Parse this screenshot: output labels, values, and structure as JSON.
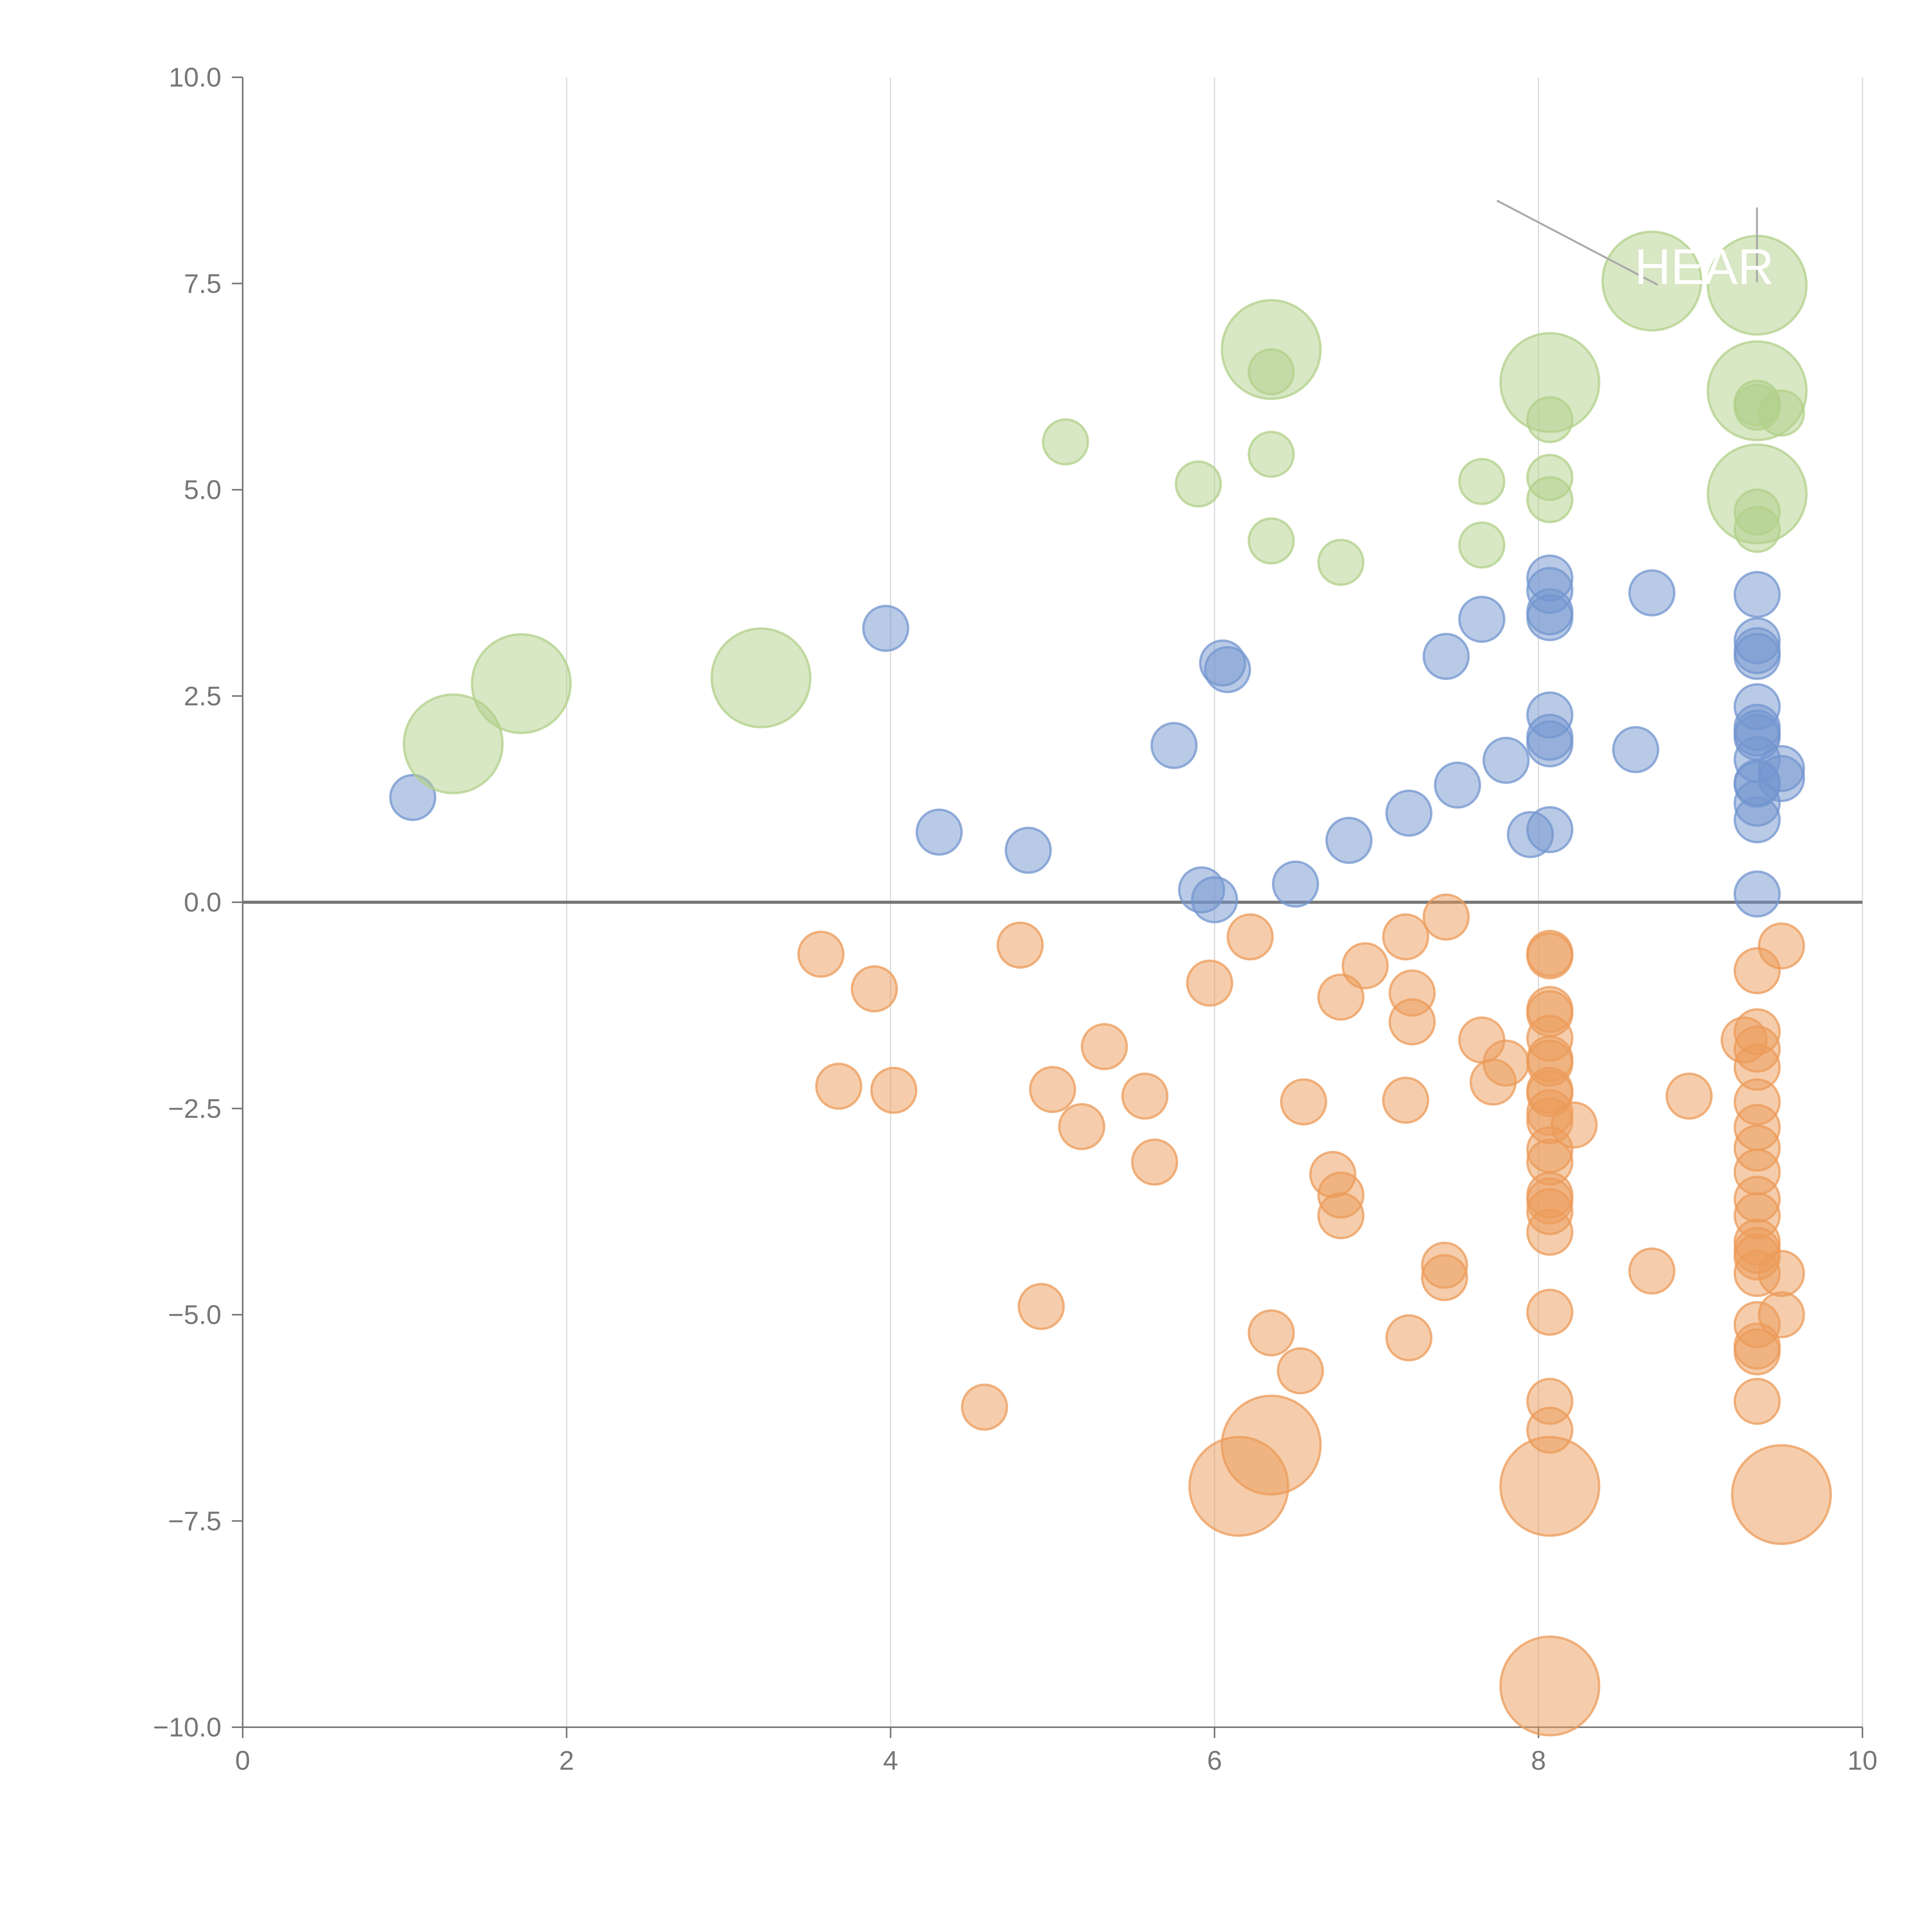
{
  "colors": {
    "blue": "#7396cf",
    "orange": "#ec9b5a",
    "green": "#b2d08a",
    "axis": "#777777",
    "grid": "#d9d9d9"
  },
  "chart_data": {
    "type": "scatter",
    "title": "",
    "xlabel": "",
    "ylabel": "",
    "xlim": [
      0,
      10
    ],
    "ylim": [
      -10,
      10
    ],
    "x_ticks": [
      0,
      2,
      4,
      6,
      8,
      10
    ],
    "y_ticks": [
      -10,
      -7.5,
      -5,
      -2.5,
      0,
      2.5,
      5,
      7.5,
      10
    ],
    "x_tick_labels": [
      "0",
      "2",
      "4",
      "6",
      "8",
      "10"
    ],
    "y_tick_labels": [
      "−10.0",
      "−7.5",
      "−5.0",
      "−2.5",
      "0.0",
      "2.5",
      "5.0",
      "7.5",
      "10.0"
    ],
    "grid": "vertical",
    "zero_line": true,
    "annotation": "HEAR",
    "bubble_size_units": "relative (1 = small, 2.2 = large)",
    "series": [
      {
        "name": "blue",
        "color": "blue",
        "points": [
          [
            1.05,
            1.27,
            1
          ],
          [
            3.97,
            3.32,
            1
          ],
          [
            4.3,
            0.85,
            1
          ],
          [
            4.85,
            0.63,
            1
          ],
          [
            5.75,
            1.9,
            1
          ],
          [
            5.92,
            0.15,
            1
          ],
          [
            6.0,
            0.03,
            1
          ],
          [
            6.05,
            2.9,
            1
          ],
          [
            6.08,
            2.82,
            1
          ],
          [
            6.5,
            0.22,
            1
          ],
          [
            6.83,
            0.75,
            1
          ],
          [
            7.2,
            1.08,
            1
          ],
          [
            7.43,
            2.98,
            1
          ],
          [
            7.5,
            1.42,
            1
          ],
          [
            7.65,
            3.43,
            1
          ],
          [
            7.8,
            1.72,
            1
          ],
          [
            7.95,
            0.82,
            1
          ],
          [
            8.07,
            0.88,
            1
          ],
          [
            8.07,
            1.92,
            1
          ],
          [
            8.07,
            2.0,
            1
          ],
          [
            8.07,
            2.27,
            1
          ],
          [
            8.07,
            3.45,
            1
          ],
          [
            8.07,
            3.52,
            1
          ],
          [
            8.07,
            3.78,
            1
          ],
          [
            8.07,
            3.93,
            1
          ],
          [
            8.6,
            1.85,
            1
          ],
          [
            8.7,
            3.75,
            1
          ],
          [
            9.35,
            0.1,
            1
          ],
          [
            9.35,
            1.0,
            1
          ],
          [
            9.35,
            1.2,
            1
          ],
          [
            9.35,
            1.43,
            1
          ],
          [
            9.35,
            1.45,
            1
          ],
          [
            9.35,
            1.73,
            1
          ],
          [
            9.35,
            2.0,
            1
          ],
          [
            9.35,
            2.05,
            1
          ],
          [
            9.35,
            2.12,
            1
          ],
          [
            9.35,
            2.37,
            1
          ],
          [
            9.35,
            2.98,
            1
          ],
          [
            9.35,
            3.05,
            1
          ],
          [
            9.35,
            3.17,
            1
          ],
          [
            9.35,
            3.73,
            1
          ],
          [
            9.5,
            1.5,
            1
          ],
          [
            9.5,
            1.62,
            1
          ]
        ]
      },
      {
        "name": "green",
        "color": "green",
        "points": [
          [
            1.3,
            1.92,
            2.2
          ],
          [
            1.72,
            2.65,
            2.2
          ],
          [
            3.2,
            2.72,
            2.2
          ],
          [
            5.08,
            5.58,
            1
          ],
          [
            5.9,
            5.07,
            1
          ],
          [
            6.35,
            4.38,
            1
          ],
          [
            6.35,
            5.43,
            1
          ],
          [
            6.35,
            6.43,
            1
          ],
          [
            6.35,
            6.7,
            2.2
          ],
          [
            6.78,
            4.12,
            1
          ],
          [
            7.65,
            4.33,
            1
          ],
          [
            7.65,
            5.1,
            1
          ],
          [
            8.07,
            4.88,
            1
          ],
          [
            8.07,
            5.15,
            1
          ],
          [
            8.07,
            5.85,
            1
          ],
          [
            8.07,
            6.3,
            2.2
          ],
          [
            8.7,
            7.53,
            2.2
          ],
          [
            9.35,
            4.52,
            1
          ],
          [
            9.35,
            4.73,
            1
          ],
          [
            9.35,
            4.95,
            2.2
          ],
          [
            9.35,
            6.0,
            1
          ],
          [
            9.35,
            6.05,
            1
          ],
          [
            9.35,
            6.2,
            2.2
          ],
          [
            9.35,
            7.48,
            2.2
          ],
          [
            9.5,
            5.93,
            1
          ]
        ]
      },
      {
        "name": "orange",
        "color": "orange",
        "points": [
          [
            3.57,
            -0.63,
            1
          ],
          [
            3.68,
            -2.23,
            1
          ],
          [
            3.9,
            -1.05,
            1
          ],
          [
            4.02,
            -2.28,
            1
          ],
          [
            4.58,
            -6.12,
            1
          ],
          [
            4.8,
            -0.52,
            1
          ],
          [
            4.93,
            -4.9,
            1
          ],
          [
            5.0,
            -2.27,
            1
          ],
          [
            5.18,
            -2.72,
            1
          ],
          [
            5.32,
            -1.75,
            1
          ],
          [
            5.57,
            -2.35,
            1
          ],
          [
            5.63,
            -3.15,
            1
          ],
          [
            5.97,
            -0.98,
            1
          ],
          [
            6.15,
            -7.08,
            2.2
          ],
          [
            6.22,
            -0.42,
            1
          ],
          [
            6.35,
            -5.22,
            1
          ],
          [
            6.35,
            -6.58,
            2.2
          ],
          [
            6.53,
            -5.68,
            1
          ],
          [
            6.55,
            -2.42,
            1
          ],
          [
            6.73,
            -3.3,
            1
          ],
          [
            6.78,
            -1.15,
            1
          ],
          [
            6.78,
            -3.55,
            1
          ],
          [
            6.78,
            -3.8,
            1
          ],
          [
            6.93,
            -0.77,
            1
          ],
          [
            7.18,
            -0.42,
            1
          ],
          [
            7.18,
            -2.4,
            1
          ],
          [
            7.2,
            -5.28,
            1
          ],
          [
            7.22,
            -1.1,
            1
          ],
          [
            7.22,
            -1.45,
            1
          ],
          [
            7.42,
            -4.4,
            1
          ],
          [
            7.42,
            -4.55,
            1
          ],
          [
            7.43,
            -0.18,
            1
          ],
          [
            7.65,
            -1.67,
            1
          ],
          [
            7.72,
            -2.18,
            1
          ],
          [
            7.8,
            -1.95,
            1
          ],
          [
            8.07,
            -0.62,
            1
          ],
          [
            8.07,
            -0.65,
            1
          ],
          [
            8.07,
            -1.3,
            1
          ],
          [
            8.07,
            -1.35,
            1
          ],
          [
            8.07,
            -1.65,
            1
          ],
          [
            8.07,
            -1.9,
            1
          ],
          [
            8.07,
            -1.95,
            1
          ],
          [
            8.07,
            -2.28,
            1
          ],
          [
            8.07,
            -2.32,
            1
          ],
          [
            8.07,
            -2.55,
            1
          ],
          [
            8.07,
            -2.65,
            1
          ],
          [
            8.07,
            -3.0,
            1
          ],
          [
            8.07,
            -3.15,
            1
          ],
          [
            8.07,
            -3.55,
            1
          ],
          [
            8.07,
            -3.62,
            1
          ],
          [
            8.07,
            -3.75,
            1
          ],
          [
            8.07,
            -4.0,
            1
          ],
          [
            8.07,
            -4.97,
            1
          ],
          [
            8.07,
            -6.05,
            1
          ],
          [
            8.07,
            -6.4,
            1
          ],
          [
            8.07,
            -7.08,
            2.2
          ],
          [
            8.07,
            -9.5,
            2.2
          ],
          [
            8.22,
            -2.7,
            1
          ],
          [
            8.7,
            -4.47,
            1
          ],
          [
            8.93,
            -2.35,
            1
          ],
          [
            9.27,
            -1.67,
            1
          ],
          [
            9.35,
            -0.83,
            1
          ],
          [
            9.35,
            -1.57,
            1
          ],
          [
            9.35,
            -1.78,
            1
          ],
          [
            9.35,
            -2.0,
            1
          ],
          [
            9.35,
            -2.42,
            1
          ],
          [
            9.35,
            -2.73,
            1
          ],
          [
            9.35,
            -2.98,
            1
          ],
          [
            9.35,
            -3.27,
            1
          ],
          [
            9.35,
            -3.6,
            1
          ],
          [
            9.35,
            -3.8,
            1
          ],
          [
            9.35,
            -4.12,
            1
          ],
          [
            9.35,
            -4.22,
            1
          ],
          [
            9.35,
            -4.3,
            1
          ],
          [
            9.35,
            -4.5,
            1
          ],
          [
            9.35,
            -5.12,
            1
          ],
          [
            9.35,
            -5.38,
            1
          ],
          [
            9.35,
            -5.45,
            1
          ],
          [
            9.35,
            -6.05,
            1
          ],
          [
            9.5,
            -0.53,
            1
          ],
          [
            9.5,
            -4.5,
            1
          ],
          [
            9.5,
            -5.0,
            1
          ],
          [
            9.5,
            -7.18,
            2.2
          ]
        ]
      }
    ]
  }
}
